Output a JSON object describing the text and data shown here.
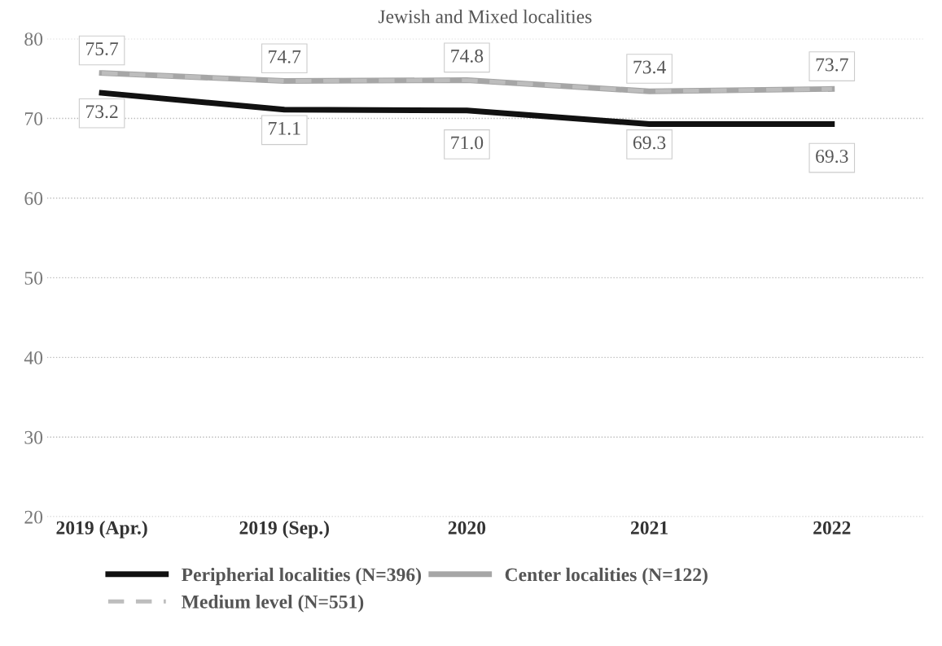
{
  "chart_data": {
    "type": "line",
    "title": "Jewish and Mixed localities",
    "categories": [
      "2019 (Apr.)",
      "2019 (Sep.)",
      "2020",
      "2021",
      "2022"
    ],
    "series": [
      {
        "name": "Peripherial localities (N=396)",
        "color": "#111111",
        "values": [
          73.2,
          71.1,
          71.0,
          69.3,
          69.3
        ],
        "value_labels": [
          "73.2",
          "71.1",
          "71.0",
          "69.3",
          "69.3"
        ],
        "line_style": "solid"
      },
      {
        "name": "Center localities (N=122)",
        "color": "#a6a6a6",
        "values": [
          75.7,
          74.7,
          74.8,
          73.4,
          73.7
        ],
        "value_labels": [
          "75.7",
          "74.7",
          "74.8",
          "73.4",
          "73.7"
        ],
        "line_style": "solid"
      },
      {
        "name": "Medium level (N=551)",
        "color": "#bdbdbd",
        "values": [
          75.7,
          74.7,
          74.8,
          73.4,
          73.7
        ],
        "line_style": "dashed"
      }
    ],
    "ylim": [
      20,
      80
    ],
    "yticks": [
      20,
      30,
      40,
      50,
      60,
      70,
      80
    ],
    "grid": "y",
    "legend": "bottom",
    "marker": "none"
  }
}
